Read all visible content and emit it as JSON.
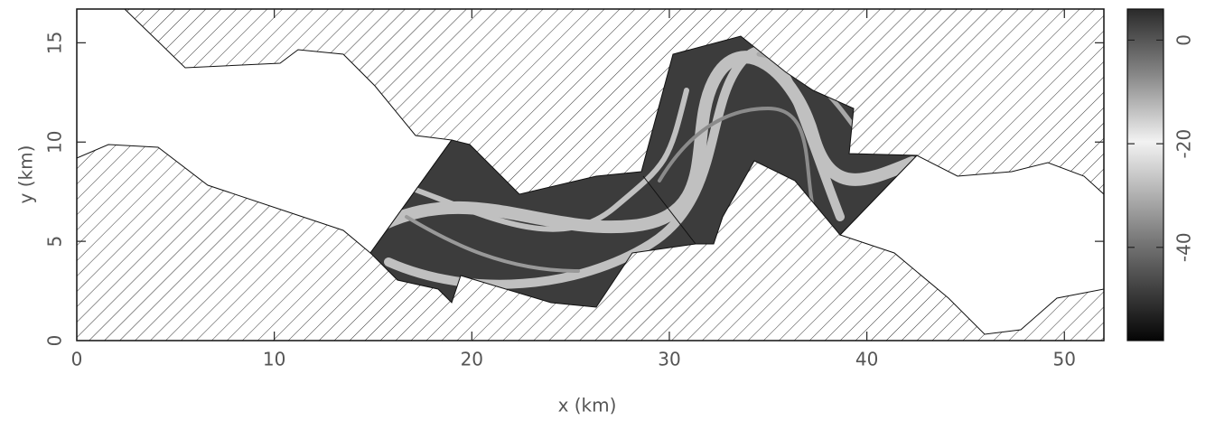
{
  "chart_data": {
    "type": "map",
    "xlabel": "x (km)",
    "ylabel": "y (km)",
    "xlim": [
      0,
      52
    ],
    "xticks": [
      0,
      10,
      20,
      30,
      40,
      50
    ],
    "ylim": [
      0,
      16.7
    ],
    "yticks": [
      0,
      5,
      10,
      15
    ],
    "colorbar": {
      "lim": [
        -58,
        6
      ],
      "ticks": [
        0,
        -20,
        -40
      ]
    }
  }
}
